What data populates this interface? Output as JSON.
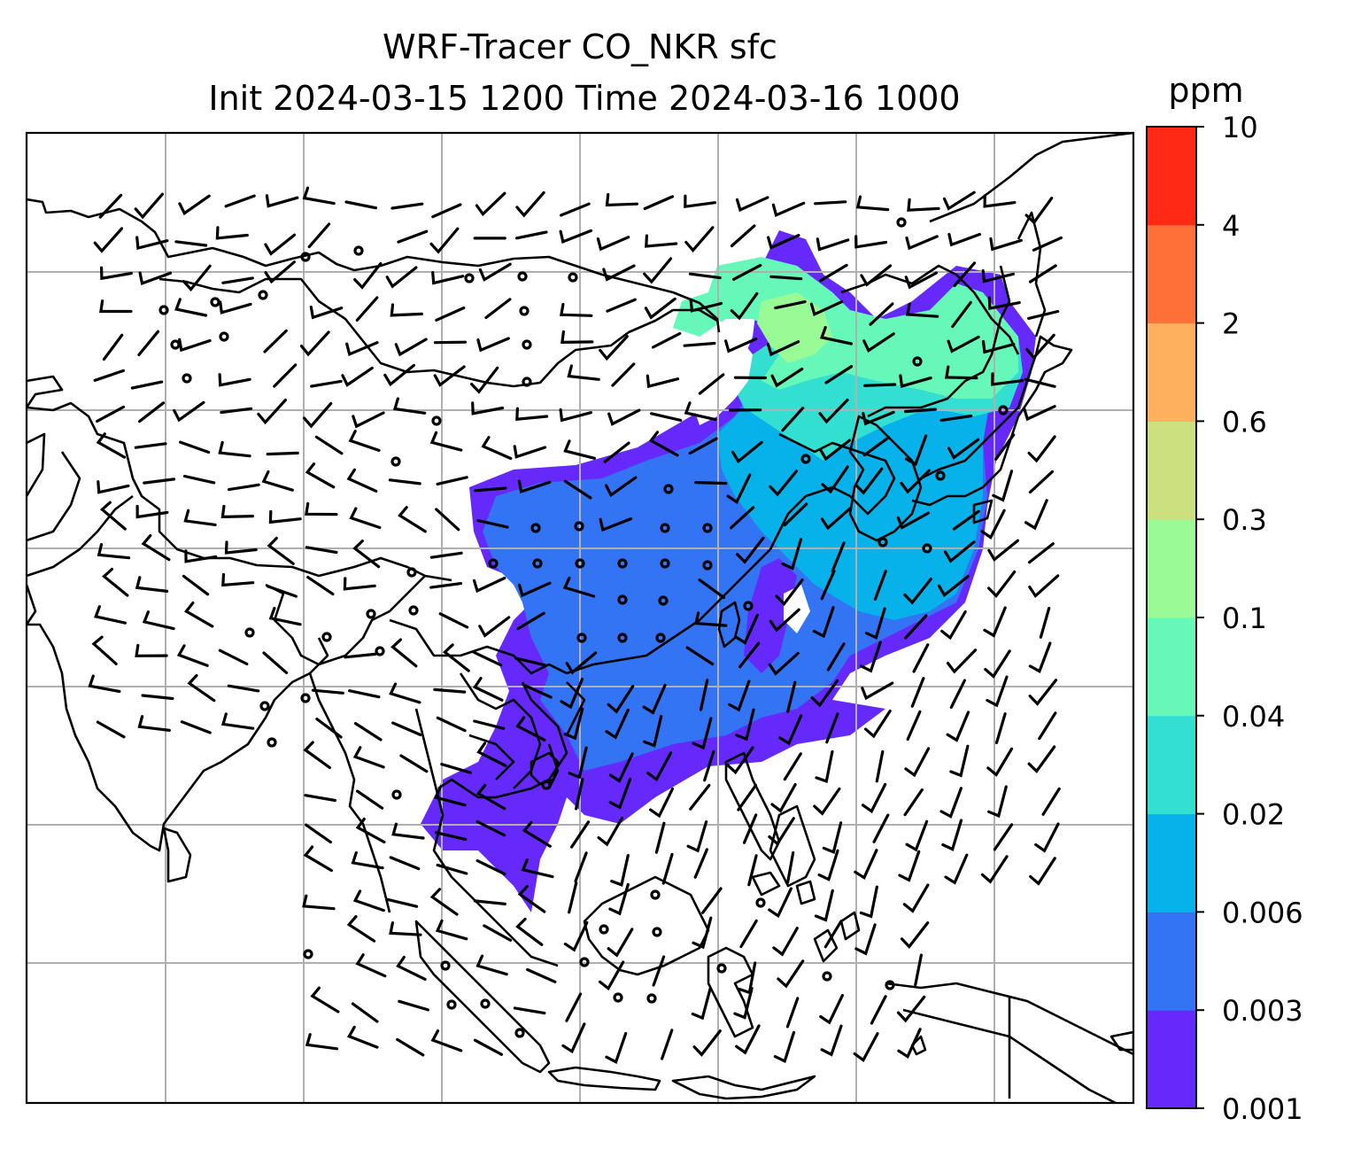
{
  "figure": {
    "title_line1": "WRF-Tracer CO_NKR sfc",
    "title_line2": "Init 2024-03-15 1200 Time 2024-03-16 1000"
  },
  "colorbar": {
    "units": "ppm",
    "levels": [
      "0.001",
      "0.003",
      "0.006",
      "0.02",
      "0.04",
      "0.1",
      "0.3",
      "0.6",
      "2",
      "4",
      "10"
    ],
    "colors": [
      "#6629fb",
      "#3374f4",
      "#06b2e9",
      "#33dfd0",
      "#66f8b8",
      "#99fb96",
      "#cce080",
      "#ffb05f",
      "#ff7139",
      "#ff2916"
    ]
  },
  "map": {
    "gridlines": true,
    "coastline_color": "#000000",
    "grid_color": "#b0b0b0",
    "plume_colors": {
      "outer": "#6629fb",
      "low": "#3374f4",
      "mid": "#06b2e9",
      "high": "#33dfd0",
      "peak": "#66f8b8",
      "max": "#99fb96"
    },
    "wind_symbols": "barbs"
  }
}
